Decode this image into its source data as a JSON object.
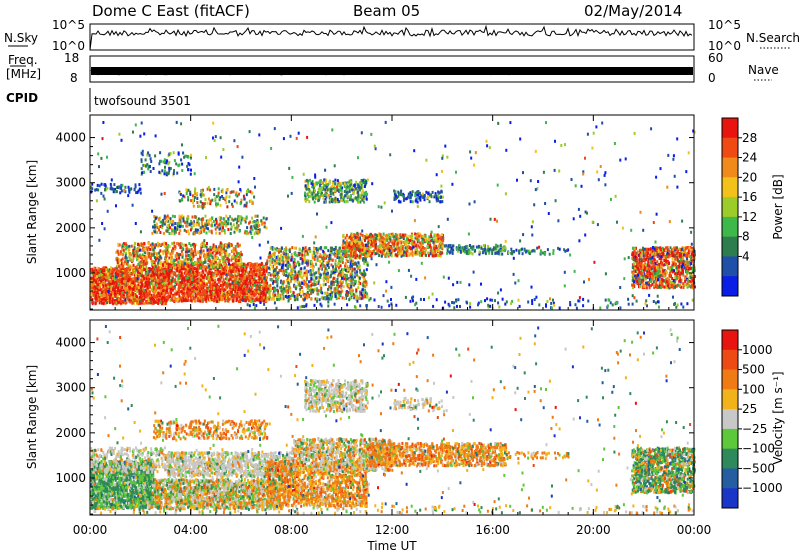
{
  "header": {
    "station": "Dome C East (fitACF)",
    "beam": "Beam 05",
    "date": "02/May/2014"
  },
  "panels": {
    "nsky_label": "N.Sky",
    "nsky_ticks": [
      "10^5",
      "10^0"
    ],
    "nsearch_label": "N.Search",
    "nsearch_ticks": [
      "10^5",
      "10^0"
    ],
    "freq_label_1": "Freq.",
    "freq_label_2": "[MHz]",
    "freq_ticks": [
      "18",
      "8"
    ],
    "nave_label": "Nave",
    "nave_ticks": [
      "60",
      "0"
    ],
    "cpid_label": "CPID",
    "cpid_text": "twofsound 3501"
  },
  "chart_data": [
    {
      "type": "heatmap",
      "name": "power",
      "ylabel": "Slant Range [km]",
      "yticks": [
        1000,
        2000,
        3000,
        4000
      ],
      "ylim": [
        180,
        4500
      ],
      "xticks": [
        "00:00",
        "04:00",
        "08:00",
        "12:00",
        "16:00",
        "20:00",
        "00:00"
      ],
      "xlim_hours": [
        0,
        24
      ],
      "colorbar_label": "Power [dB]",
      "colorbar_ticks": [
        "28",
        "24",
        "20",
        "16",
        "12",
        "8",
        "4"
      ],
      "colors": [
        "#0a1ee6",
        "#1f4fa8",
        "#2e7d4f",
        "#3fb84a",
        "#9ccc2a",
        "#f2c21a",
        "#f08a1a",
        "#f04a14",
        "#e8140f"
      ]
    },
    {
      "type": "heatmap",
      "name": "velocity",
      "ylabel": "Slant Range [km]",
      "yticks": [
        1000,
        2000,
        3000,
        4000
      ],
      "ylim": [
        180,
        4500
      ],
      "xticks": [
        "00:00",
        "04:00",
        "08:00",
        "12:00",
        "16:00",
        "20:00",
        "00:00"
      ],
      "xlim_hours": [
        0,
        24
      ],
      "xlabel": "Time UT",
      "colorbar_label": "Velocity [m s⁻¹]",
      "colorbar_ticks": [
        "1000",
        "500",
        "100",
        "25",
        "−25",
        "−100",
        "−500",
        "−1000"
      ],
      "colors": [
        "#1a36c8",
        "#245ea0",
        "#2e8a5a",
        "#5cc83a",
        "#c8c8c8",
        "#f2b21a",
        "#f07a14",
        "#ee4a14",
        "#e8140f"
      ]
    }
  ]
}
